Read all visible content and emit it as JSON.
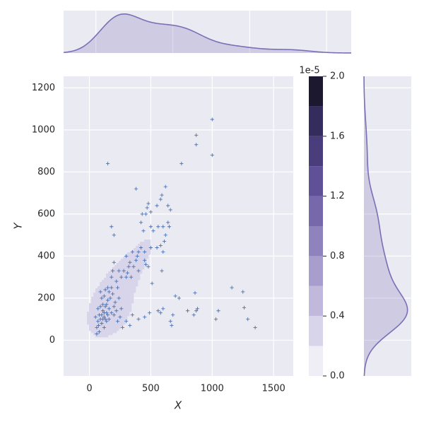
{
  "chart_data": {
    "type": "scatter",
    "xlabel": "X",
    "ylabel": "Y",
    "x": [
      60,
      70,
      80,
      90,
      100,
      110,
      120,
      130,
      140,
      150,
      160,
      170,
      100,
      90,
      130,
      150,
      80,
      60,
      120,
      140,
      160,
      180,
      200,
      210,
      190,
      110,
      70,
      50,
      100,
      120,
      130,
      140,
      160,
      180,
      200,
      220,
      230,
      250,
      260,
      270,
      240,
      120,
      90,
      150,
      110,
      75,
      860,
      880,
      870,
      850,
      1050,
      1030,
      1160,
      1250,
      1260,
      1290,
      1350,
      680,
      660,
      670,
      700,
      730,
      800,
      560,
      580,
      600,
      490,
      450,
      400,
      350,
      300,
      330,
      380,
      550,
      590,
      580,
      620,
      640,
      660,
      640,
      600,
      480,
      470,
      460,
      500,
      430,
      420,
      440,
      500,
      520,
      560,
      610,
      620,
      650,
      580,
      600,
      500,
      450,
      400,
      380,
      390,
      420,
      350,
      330,
      300,
      280,
      260,
      240,
      320,
      340,
      300,
      190,
      180,
      200,
      200,
      180,
      220,
      230,
      550,
      450,
      400,
      480,
      510,
      590,
      460,
      360,
      310,
      870,
      870,
      1000,
      1000,
      750,
      150
    ],
    "y": [
      60,
      90,
      120,
      100,
      80,
      140,
      110,
      160,
      130,
      190,
      150,
      200,
      200,
      230,
      240,
      250,
      40,
      30,
      60,
      90,
      100,
      130,
      160,
      180,
      220,
      170,
      150,
      110,
      120,
      130,
      100,
      170,
      230,
      250,
      120,
      140,
      90,
      110,
      150,
      60,
      200,
      210,
      160,
      120,
      100,
      70,
      225,
      150,
      140,
      120,
      140,
      100,
      250,
      230,
      155,
      100,
      60,
      120,
      90,
      70,
      210,
      200,
      140,
      140,
      130,
      150,
      130,
      110,
      100,
      120,
      90,
      70,
      720,
      640,
      690,
      670,
      730,
      640,
      620,
      560,
      540,
      650,
      630,
      600,
      610,
      600,
      560,
      520,
      540,
      520,
      540,
      470,
      500,
      540,
      450,
      420,
      440,
      420,
      420,
      380,
      400,
      440,
      420,
      370,
      400,
      330,
      300,
      330,
      350,
      300,
      300,
      330,
      540,
      500,
      370,
      300,
      280,
      250,
      440,
      380,
      330,
      350,
      270,
      330,
      360,
      350,
      320,
      975,
      930,
      1050,
      880,
      840,
      840
    ],
    "color": "#4c72b0",
    "marginal_color": "#7b6fb5",
    "xlim": [
      -210,
      1660
    ],
    "ylim": [
      -170,
      1255
    ],
    "xticks": [
      0,
      500,
      1000,
      1500
    ],
    "yticks": [
      0,
      200,
      400,
      600,
      800,
      1000,
      1200
    ],
    "grid": true,
    "colorbar": {
      "label": "1e-5",
      "lim": [
        0,
        2
      ],
      "ticks": [
        {
          "value": 0,
          "label": "0.0"
        },
        {
          "value": 0.4,
          "label": "0.4"
        },
        {
          "value": 0.8,
          "label": "0.8"
        },
        {
          "value": 1.2,
          "label": "1.2"
        },
        {
          "value": 1.6,
          "label": "1.6"
        },
        {
          "value": 2,
          "label": "2.0"
        }
      ],
      "levels": [
        0,
        0.2,
        0.4,
        0.6,
        0.8,
        1.0,
        1.2,
        1.4,
        1.6,
        1.8,
        2.0
      ],
      "colors": [
        "#efeef6",
        "#d8d4e9",
        "#c0b9db",
        "#a79ecd",
        "#8f83bd",
        "#7768ab",
        "#605097",
        "#4a3d7c",
        "#342c5c",
        "#1c1830"
      ]
    }
  }
}
